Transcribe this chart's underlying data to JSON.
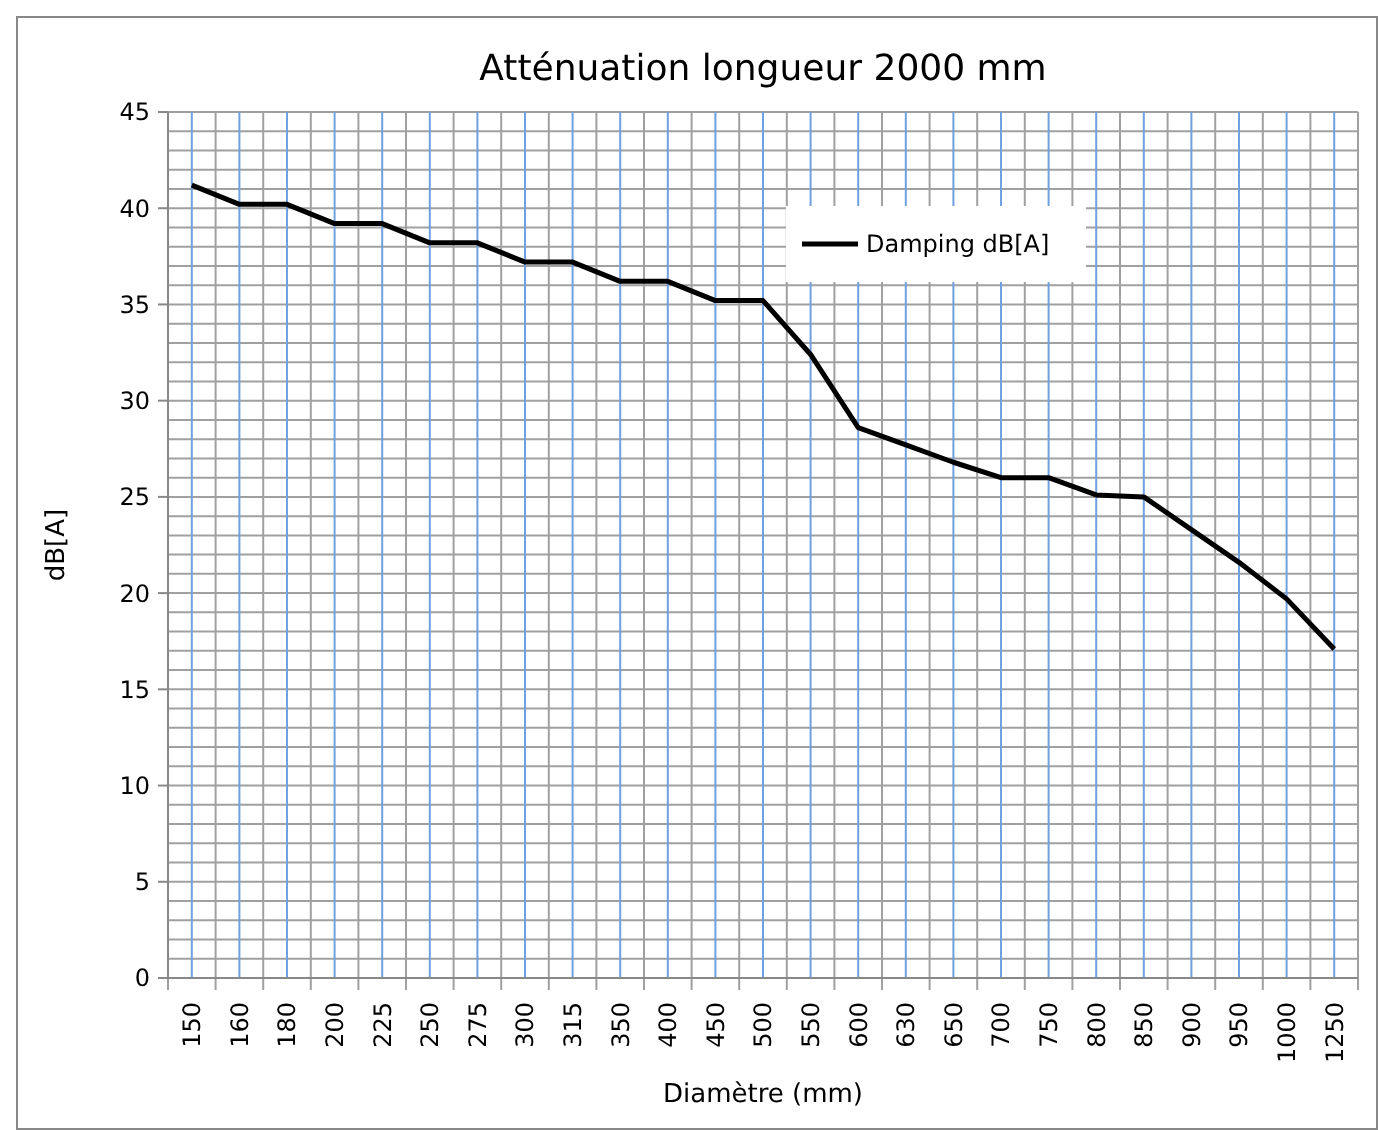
{
  "chart_data": {
    "type": "line",
    "title": "Atténuation longueur 2000 mm",
    "xlabel": "Diamètre (mm)",
    "ylabel": "dB[A]",
    "categories": [
      "150",
      "160",
      "180",
      "200",
      "225",
      "250",
      "275",
      "300",
      "315",
      "350",
      "400",
      "450",
      "500",
      "550",
      "600",
      "630",
      "650",
      "700",
      "750",
      "800",
      "850",
      "900",
      "950",
      "1000",
      "1250"
    ],
    "series": [
      {
        "name": "Damping dB[A]",
        "color": "#000000",
        "values": [
          41.2,
          40.2,
          40.2,
          39.2,
          39.2,
          38.2,
          38.2,
          37.2,
          37.2,
          36.2,
          36.2,
          35.2,
          35.2,
          32.4,
          28.6,
          27.7,
          26.8,
          26.0,
          26.0,
          25.1,
          25.0,
          23.3,
          21.6,
          19.7,
          17.1
        ]
      }
    ],
    "ylim": [
      0,
      45
    ],
    "yticks": [
      0,
      5,
      10,
      15,
      20,
      25,
      30,
      35,
      40,
      45
    ],
    "grid": true,
    "legend": "top right",
    "marker": "none",
    "line_style": "solid"
  }
}
